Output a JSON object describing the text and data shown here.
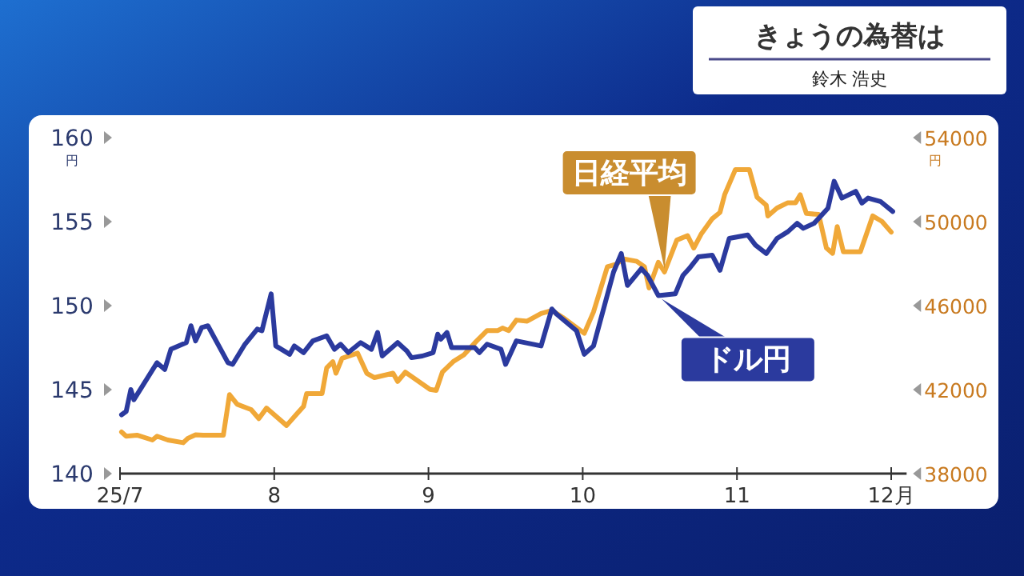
{
  "chart_data": {
    "type": "line",
    "title": "きょうの為替は",
    "subtitle": "鈴木 浩史",
    "ylabel": "円",
    "y2label": "円",
    "xlim": [
      7,
      12.1
    ],
    "xticks": [
      {
        "value": 7,
        "label": "25/7"
      },
      8,
      9,
      10,
      11,
      {
        "value": 12,
        "label": "12月"
      }
    ],
    "ylim": [
      140,
      160
    ],
    "yticks": [
      140,
      145,
      150,
      155,
      160
    ],
    "y2lim": [
      38000,
      54000
    ],
    "y2ticks": [
      38000,
      42000,
      46000,
      50000,
      54000
    ],
    "line_style": "solid",
    "series": [
      {
        "name": "ドル円",
        "color": "#2b3a9e",
        "x": [
          7.01,
          7.04,
          7.07,
          7.09,
          7.24,
          7.29,
          7.33,
          7.43,
          7.46,
          7.49,
          7.53,
          7.57,
          7.7,
          7.73,
          7.81,
          7.89,
          7.92,
          7.98,
          8.01,
          8.1,
          8.13,
          8.19,
          8.25,
          8.34,
          8.39,
          8.43,
          8.48,
          8.56,
          8.63,
          8.67,
          8.7,
          8.8,
          8.86,
          8.89,
          8.96,
          9.03,
          9.06,
          9.08,
          9.12,
          9.15,
          9.3,
          9.33,
          9.38,
          9.47,
          9.5,
          9.57,
          9.73,
          9.8,
          9.83,
          9.96,
          10.01,
          10.07,
          10.2,
          10.25,
          10.29,
          10.38,
          10.42,
          10.49,
          10.6,
          10.65,
          10.69,
          10.75,
          10.84,
          10.89,
          10.95,
          11.07,
          11.12,
          11.19,
          11.26,
          11.33,
          11.39,
          11.43,
          11.5,
          11.59,
          11.63,
          11.68,
          11.77,
          11.81,
          11.85,
          11.93,
          12.01
        ],
        "values": [
          143.5,
          143.7,
          145.0,
          144.4,
          146.6,
          146.2,
          147.4,
          147.8,
          148.8,
          147.9,
          148.7,
          148.8,
          146.6,
          146.5,
          147.7,
          148.6,
          148.5,
          150.7,
          147.6,
          147.1,
          147.6,
          147.2,
          147.9,
          148.2,
          147.4,
          147.7,
          147.2,
          147.8,
          147.4,
          148.4,
          147.0,
          147.8,
          147.3,
          146.9,
          147.0,
          147.2,
          148.3,
          148.0,
          148.4,
          147.5,
          147.5,
          147.2,
          147.7,
          147.4,
          146.5,
          147.9,
          147.6,
          149.8,
          149.5,
          148.5,
          147.1,
          147.6,
          152.0,
          153.1,
          151.2,
          152.2,
          151.8,
          150.6,
          150.7,
          151.8,
          152.2,
          152.9,
          153.0,
          152.1,
          154.0,
          154.2,
          153.6,
          153.1,
          154.0,
          154.4,
          154.9,
          154.6,
          154.9,
          155.8,
          157.4,
          156.4,
          156.8,
          156.1,
          156.4,
          156.2,
          155.6
        ]
      },
      {
        "name": "日経平均",
        "color": "#f0a838",
        "axis": "y2",
        "x": [
          7.01,
          7.04,
          7.11,
          7.21,
          7.24,
          7.31,
          7.41,
          7.44,
          7.49,
          7.54,
          7.67,
          7.71,
          7.76,
          7.85,
          7.9,
          7.95,
          8.08,
          8.14,
          8.19,
          8.21,
          8.31,
          8.34,
          8.38,
          8.4,
          8.44,
          8.54,
          8.6,
          8.65,
          8.77,
          8.8,
          8.85,
          9.01,
          9.05,
          9.09,
          9.16,
          9.23,
          9.31,
          9.38,
          9.45,
          9.48,
          9.52,
          9.57,
          9.64,
          9.73,
          9.8,
          9.87,
          10.01,
          10.07,
          10.16,
          10.22,
          10.26,
          10.35,
          10.4,
          10.43,
          10.49,
          10.53,
          10.61,
          10.68,
          10.72,
          10.77,
          10.84,
          10.89,
          10.92,
          10.99,
          11.08,
          11.13,
          11.19,
          11.2,
          11.26,
          11.33,
          11.38,
          11.41,
          11.45,
          11.53,
          11.58,
          11.62,
          11.65,
          11.69,
          11.8,
          11.88,
          11.94,
          12.0
        ],
        "values": [
          39980,
          39780,
          39830,
          39600,
          39780,
          39600,
          39470,
          39680,
          39850,
          39830,
          39830,
          41760,
          41300,
          41050,
          40620,
          41120,
          40290,
          40790,
          41200,
          41810,
          41810,
          43030,
          43330,
          42780,
          43490,
          43740,
          42780,
          42570,
          42780,
          42390,
          42830,
          42010,
          41960,
          42830,
          43330,
          43660,
          44300,
          44810,
          44810,
          44930,
          44810,
          45310,
          45260,
          45620,
          45770,
          45440,
          44680,
          45700,
          47850,
          47980,
          48230,
          48110,
          47850,
          46840,
          48060,
          47600,
          49120,
          49330,
          48740,
          49430,
          50140,
          50440,
          51280,
          52480,
          52480,
          51160,
          50780,
          50270,
          50650,
          50900,
          50900,
          51280,
          50390,
          50340,
          48740,
          48490,
          49760,
          48560,
          48560,
          50270,
          50010,
          49500
        ]
      }
    ]
  }
}
